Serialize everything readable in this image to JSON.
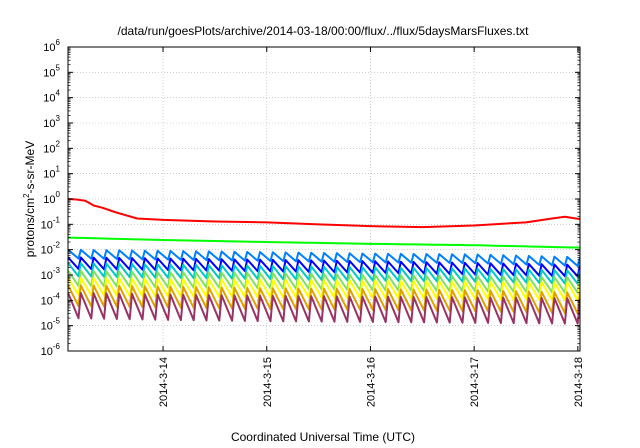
{
  "chart_data": {
    "type": "line",
    "title": "/data/run/goesPlots/archive/2014-03-18/00:00/flux/../flux/5daysMarsFluxes.txt",
    "xlabel": "Coordinated Universal Time (UTC)",
    "ylabel": "protons/cm²-s-sr-MeV",
    "y_scale": "log",
    "ylim": [
      1e-06,
      1000000.0
    ],
    "y_ticks": [
      {
        "value": 1e-06,
        "base": "10",
        "exp": "-6"
      },
      {
        "value": 1e-05,
        "base": "10",
        "exp": "-5"
      },
      {
        "value": 0.0001,
        "base": "10",
        "exp": "-4"
      },
      {
        "value": 0.001,
        "base": "10",
        "exp": "-3"
      },
      {
        "value": 0.01,
        "base": "10",
        "exp": "-2"
      },
      {
        "value": 0.1,
        "base": "10",
        "exp": "-1"
      },
      {
        "value": 1,
        "base": "10",
        "exp": "0"
      },
      {
        "value": 10,
        "base": "10",
        "exp": "1"
      },
      {
        "value": 100,
        "base": "10",
        "exp": "2"
      },
      {
        "value": 1000,
        "base": "10",
        "exp": "3"
      },
      {
        "value": 10000,
        "base": "10",
        "exp": "4"
      },
      {
        "value": 100000,
        "base": "10",
        "exp": "5"
      },
      {
        "value": 1000000,
        "base": "10",
        "exp": "6"
      }
    ],
    "xlim": [
      "2014-03-13T02:00",
      "2014-03-18T00:30"
    ],
    "x_ticks": [
      {
        "label": "2014-3-14",
        "value": "2014-03-14T00:00"
      },
      {
        "label": "2014-3-15",
        "value": "2014-03-15T00:00"
      },
      {
        "label": "2014-3-16",
        "value": "2014-03-16T00:00"
      },
      {
        "label": "2014-3-17",
        "value": "2014-03-17T00:00"
      },
      {
        "label": "2014-3-18",
        "value": "2014-03-18T00:00"
      }
    ],
    "grid": true,
    "legend": "none",
    "series": [
      {
        "color": "#ff0000",
        "pattern": "smooth",
        "sawtooth_cycles": 0,
        "points": [
          [
            "2014-03-13T02:00",
            1.0
          ],
          [
            "2014-03-13T04:00",
            0.95
          ],
          [
            "2014-03-13T06:00",
            0.85
          ],
          [
            "2014-03-13T08:00",
            0.55
          ],
          [
            "2014-03-13T10:00",
            0.45
          ],
          [
            "2014-03-13T13:00",
            0.3
          ],
          [
            "2014-03-13T18:00",
            0.17
          ],
          [
            "2014-03-14T00:00",
            0.15
          ],
          [
            "2014-03-14T12:00",
            0.13
          ],
          [
            "2014-03-15T00:00",
            0.12
          ],
          [
            "2014-03-15T12:00",
            0.1
          ],
          [
            "2014-03-16T00:00",
            0.085
          ],
          [
            "2014-03-16T12:00",
            0.078
          ],
          [
            "2014-03-17T00:00",
            0.09
          ],
          [
            "2014-03-17T12:00",
            0.12
          ],
          [
            "2014-03-17T18:00",
            0.17
          ],
          [
            "2014-03-17T21:00",
            0.2
          ],
          [
            "2014-03-18T00:30",
            0.16
          ]
        ]
      },
      {
        "color": "#00ff00",
        "pattern": "sawtooth",
        "sawtooth_cycles": 40,
        "points": [
          [
            "2014-03-13T02:00",
            0.03
          ],
          [
            "2014-03-14T00:00",
            0.024
          ],
          [
            "2014-03-15T00:00",
            0.02
          ],
          [
            "2014-03-16T00:00",
            0.017
          ],
          [
            "2014-03-17T00:00",
            0.015
          ],
          [
            "2014-03-18T00:30",
            0.012
          ]
        ]
      },
      {
        "color": "#0080ff",
        "pattern": "sawtooth",
        "sawtooth_cycles": 40,
        "points": [
          [
            "2014-03-13T02:00",
            0.01
          ],
          [
            "2014-03-14T00:00",
            0.009
          ],
          [
            "2014-03-15T00:00",
            0.008
          ],
          [
            "2014-03-16T00:00",
            0.007
          ],
          [
            "2014-03-17T00:00",
            0.0065
          ],
          [
            "2014-03-18T00:30",
            0.005
          ]
        ]
      },
      {
        "color": "#0000ff",
        "pattern": "sawtooth",
        "sawtooth_cycles": 40,
        "points": [
          [
            "2014-03-13T02:00",
            0.005
          ],
          [
            "2014-03-14T00:00",
            0.0045
          ],
          [
            "2014-03-15T00:00",
            0.004
          ],
          [
            "2014-03-16T00:00",
            0.0035
          ],
          [
            "2014-03-17T00:00",
            0.003
          ],
          [
            "2014-03-18T00:30",
            0.0025
          ]
        ]
      },
      {
        "color": "#00c8c8",
        "pattern": "sawtooth",
        "sawtooth_cycles": 40,
        "points": [
          [
            "2014-03-13T02:00",
            0.003
          ],
          [
            "2014-03-14T00:00",
            0.0026
          ],
          [
            "2014-03-15T00:00",
            0.0023
          ],
          [
            "2014-03-16T00:00",
            0.002
          ],
          [
            "2014-03-17T00:00",
            0.0018
          ],
          [
            "2014-03-18T00:30",
            0.0015
          ]
        ]
      },
      {
        "color": "#80e060",
        "pattern": "sawtooth",
        "sawtooth_cycles": 40,
        "points": [
          [
            "2014-03-13T02:00",
            0.0015
          ],
          [
            "2014-03-14T00:00",
            0.0013
          ],
          [
            "2014-03-15T00:00",
            0.0012
          ],
          [
            "2014-03-16T00:00",
            0.001
          ],
          [
            "2014-03-17T00:00",
            0.0009
          ],
          [
            "2014-03-18T00:30",
            0.0008
          ]
        ]
      },
      {
        "color": "#ffff00",
        "pattern": "sawtooth",
        "sawtooth_cycles": 40,
        "points": [
          [
            "2014-03-13T02:00",
            0.0008
          ],
          [
            "2014-03-14T00:00",
            0.0007
          ],
          [
            "2014-03-15T00:00",
            0.00065
          ],
          [
            "2014-03-16T00:00",
            0.0006
          ],
          [
            "2014-03-17T00:00",
            0.00055
          ],
          [
            "2014-03-18T00:30",
            0.0005
          ]
        ]
      },
      {
        "color": "#e0a000",
        "pattern": "sawtooth",
        "sawtooth_cycles": 40,
        "points": [
          [
            "2014-03-13T02:00",
            0.0004
          ],
          [
            "2014-03-14T00:00",
            0.00035
          ],
          [
            "2014-03-15T00:00",
            0.0003
          ],
          [
            "2014-03-16T00:00",
            0.00028
          ],
          [
            "2014-03-17T00:00",
            0.00025
          ],
          [
            "2014-03-18T00:30",
            0.0002
          ]
        ]
      },
      {
        "color": "#993366",
        "pattern": "sawtooth",
        "sawtooth_cycles": 40,
        "points": [
          [
            "2014-03-13T02:00",
            0.0002
          ],
          [
            "2014-03-14T00:00",
            0.00017
          ],
          [
            "2014-03-15T00:00",
            0.00015
          ],
          [
            "2014-03-16T00:00",
            0.00014
          ],
          [
            "2014-03-17T00:00",
            0.00013
          ],
          [
            "2014-03-18T00:30",
            0.00012
          ]
        ]
      }
    ],
    "sawtooth_trough_ratio": [
      1,
      1,
      0.45,
      0.35,
      0.3,
      0.25,
      0.2,
      0.15,
      0.1
    ]
  }
}
